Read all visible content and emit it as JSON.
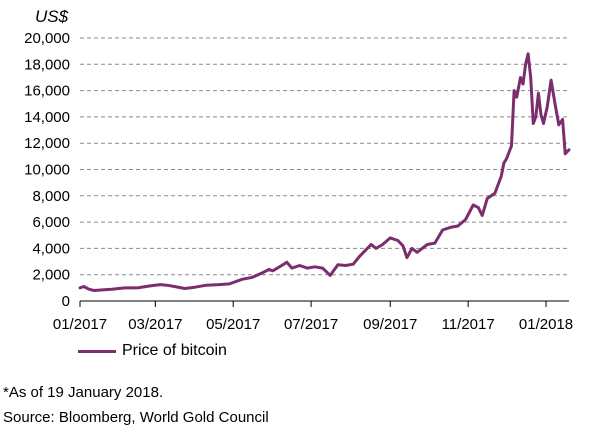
{
  "chart_data": {
    "type": "line",
    "y_unit_label": "US$",
    "ylim": [
      0,
      20000
    ],
    "yticks": [
      0,
      2000,
      4000,
      6000,
      8000,
      10000,
      12000,
      14000,
      16000,
      18000,
      20000
    ],
    "ytick_labels": [
      "0",
      "2,000",
      "4,000",
      "6,000",
      "8,000",
      "10,000",
      "12,000",
      "14,000",
      "16,000",
      "18,000",
      "20,000"
    ],
    "xlim": [
      "2017-01-01",
      "2018-01-19"
    ],
    "xticks": [
      "2017-01-01",
      "2017-03-01",
      "2017-05-01",
      "2017-07-01",
      "2017-09-01",
      "2017-11-01",
      "2018-01-01"
    ],
    "xtick_labels": [
      "01/2017",
      "03/2017",
      "05/2017",
      "07/2017",
      "09/2017",
      "11/2017",
      "01/2018"
    ],
    "grid": "horizontal dashed",
    "legend_position": "bottom-left",
    "series": [
      {
        "name": "Price of bitcoin",
        "color": "#7b2d6e",
        "points": [
          [
            "2017-01-01",
            1000
          ],
          [
            "2017-01-04",
            1100
          ],
          [
            "2017-01-08",
            900
          ],
          [
            "2017-01-12",
            800
          ],
          [
            "2017-01-20",
            850
          ],
          [
            "2017-01-26",
            900
          ],
          [
            "2017-02-05",
            1000
          ],
          [
            "2017-02-15",
            1000
          ],
          [
            "2017-02-25",
            1150
          ],
          [
            "2017-03-05",
            1250
          ],
          [
            "2017-03-10",
            1200
          ],
          [
            "2017-03-16",
            1100
          ],
          [
            "2017-03-24",
            950
          ],
          [
            "2017-04-01",
            1050
          ],
          [
            "2017-04-10",
            1200
          ],
          [
            "2017-04-20",
            1250
          ],
          [
            "2017-04-28",
            1300
          ],
          [
            "2017-05-08",
            1650
          ],
          [
            "2017-05-16",
            1800
          ],
          [
            "2017-05-25",
            2200
          ],
          [
            "2017-05-29",
            2400
          ],
          [
            "2017-06-01",
            2300
          ],
          [
            "2017-06-08",
            2700
          ],
          [
            "2017-06-12",
            2950
          ],
          [
            "2017-06-16",
            2500
          ],
          [
            "2017-06-22",
            2700
          ],
          [
            "2017-06-28",
            2500
          ],
          [
            "2017-07-04",
            2600
          ],
          [
            "2017-07-10",
            2500
          ],
          [
            "2017-07-16",
            1950
          ],
          [
            "2017-07-22",
            2750
          ],
          [
            "2017-07-28",
            2700
          ],
          [
            "2017-08-03",
            2800
          ],
          [
            "2017-08-08",
            3400
          ],
          [
            "2017-08-14",
            4000
          ],
          [
            "2017-08-17",
            4300
          ],
          [
            "2017-08-21",
            4000
          ],
          [
            "2017-08-26",
            4300
          ],
          [
            "2017-09-01",
            4800
          ],
          [
            "2017-09-07",
            4600
          ],
          [
            "2017-09-11",
            4200
          ],
          [
            "2017-09-14",
            3300
          ],
          [
            "2017-09-18",
            4000
          ],
          [
            "2017-09-22",
            3700
          ],
          [
            "2017-09-30",
            4300
          ],
          [
            "2017-10-06",
            4400
          ],
          [
            "2017-10-12",
            5400
          ],
          [
            "2017-10-18",
            5600
          ],
          [
            "2017-10-24",
            5700
          ],
          [
            "2017-10-30",
            6200
          ],
          [
            "2017-11-05",
            7300
          ],
          [
            "2017-11-09",
            7100
          ],
          [
            "2017-11-12",
            6500
          ],
          [
            "2017-11-16",
            7800
          ],
          [
            "2017-11-22",
            8200
          ],
          [
            "2017-11-27",
            9500
          ],
          [
            "2017-11-29",
            10500
          ],
          [
            "2017-12-01",
            10800
          ],
          [
            "2017-12-05",
            11800
          ],
          [
            "2017-12-07",
            16000
          ],
          [
            "2017-12-09",
            15500
          ],
          [
            "2017-12-12",
            17000
          ],
          [
            "2017-12-14",
            16500
          ],
          [
            "2017-12-16",
            18000
          ],
          [
            "2017-12-18",
            18800
          ],
          [
            "2017-12-20",
            17000
          ],
          [
            "2017-12-22",
            13500
          ],
          [
            "2017-12-24",
            14000
          ],
          [
            "2017-12-26",
            15800
          ],
          [
            "2017-12-28",
            14200
          ],
          [
            "2017-12-30",
            13500
          ],
          [
            "2018-01-02",
            14800
          ],
          [
            "2018-01-05",
            16800
          ],
          [
            "2018-01-08",
            15000
          ],
          [
            "2018-01-11",
            13400
          ],
          [
            "2018-01-14",
            13800
          ],
          [
            "2018-01-16",
            11200
          ],
          [
            "2018-01-19",
            11500
          ]
        ]
      }
    ]
  },
  "legend": {
    "label": "Price of bitcoin",
    "color": "#7b2d6e"
  },
  "footnote": "*As of 19 January 2018.",
  "source": "Source: Bloomberg, World Gold Council"
}
